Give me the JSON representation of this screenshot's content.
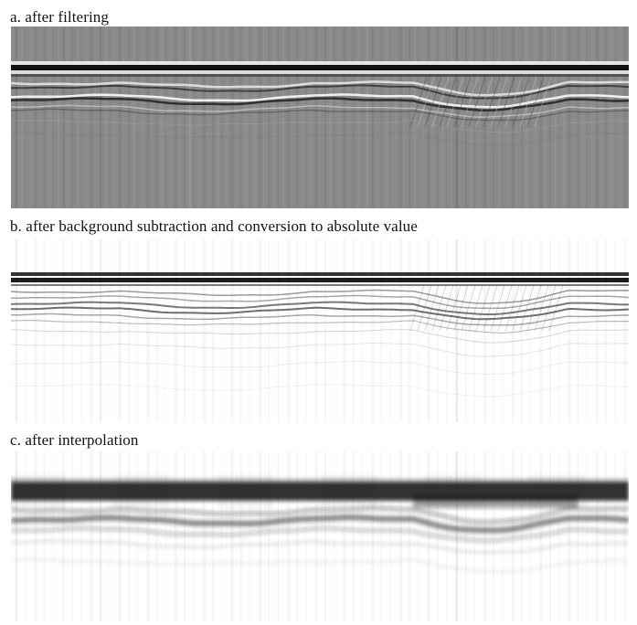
{
  "figure": {
    "panels": [
      {
        "id": "a",
        "caption": "a. after filtering",
        "style": "filtered"
      },
      {
        "id": "b",
        "caption": "b. after background subtraction and conversion to absolute value",
        "style": "absolute"
      },
      {
        "id": "c",
        "caption": "c. after interpolation",
        "style": "interpolated"
      }
    ]
  },
  "colors": {
    "filtered_background": "#8a8a8a",
    "absolute_background": "#ffffff",
    "interpolated_background": "#ffffff",
    "dark_reflector": "#111111"
  }
}
